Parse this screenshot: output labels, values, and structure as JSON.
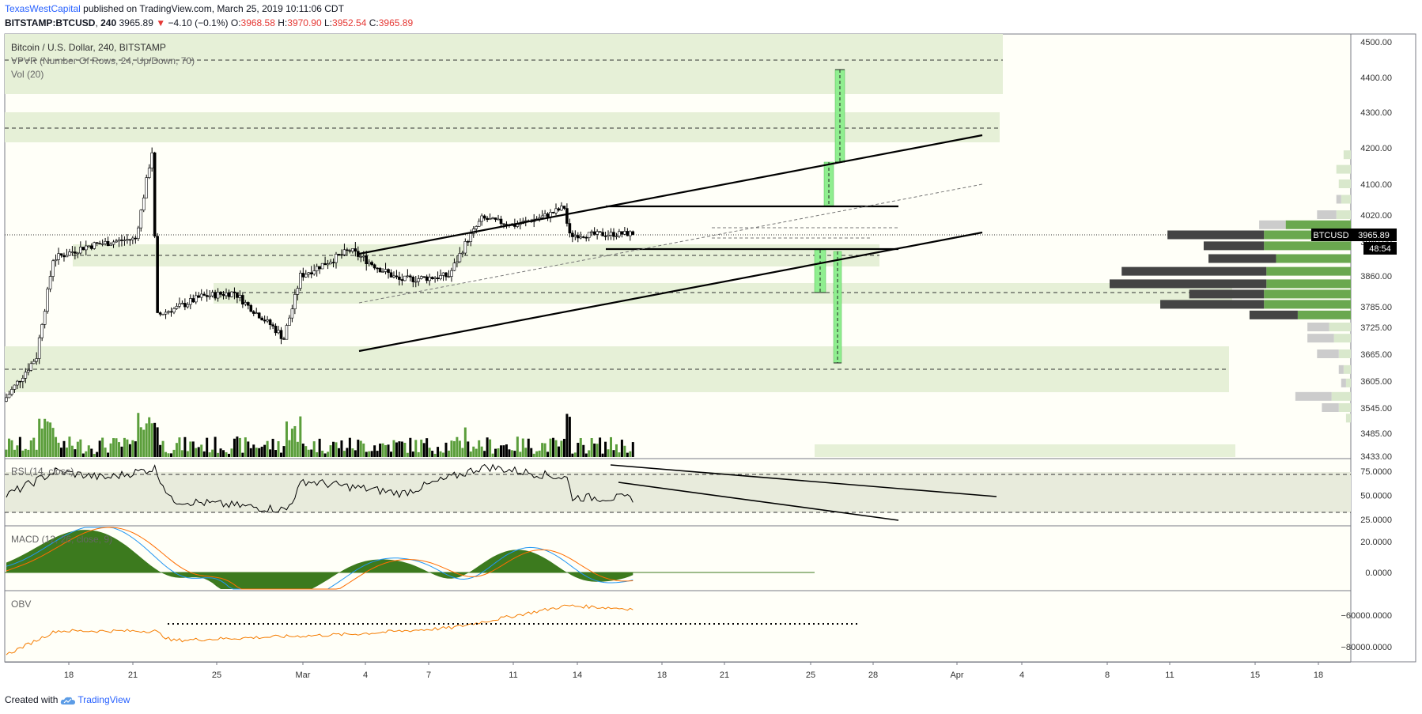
{
  "header": {
    "author": "TexasWestCapital",
    "published_text": "published on TradingView.com, March 25, 2019 10:11:06 CDT"
  },
  "ohlc": {
    "symbol": "BITSTAMP:BTCUSD",
    "interval": "240",
    "last": "3965.89",
    "change": "−4.10 (−0.1%)",
    "o_label": "O:",
    "o": "3968.58",
    "h_label": "H:",
    "h": "3970.90",
    "l_label": "L:",
    "l": "3952.54",
    "c_label": "C:",
    "c": "3965.89"
  },
  "legend": {
    "title": "Bitcoin / U.S. Dollar, 240, BITSTAMP",
    "vpvr": "VPVR (Number Of Rows, 24, Up/Down, 70)",
    "vol": "Vol (20)",
    "rsi": "RSI (14, close)",
    "macd": "MACD (12, 26, close, 9)",
    "obv": "OBV"
  },
  "price_tag": {
    "symbol": "BTCUSD",
    "value": "3965.89",
    "countdown": "48:54"
  },
  "footer": {
    "created_with": "Created with",
    "brand": "TradingView"
  },
  "colors": {
    "background": "#fffff8",
    "zone": "#e6f0d7",
    "up_candle": "#ffffff",
    "down_candle": "#000000",
    "volume_up": "#5b9e3b",
    "volume_down": "#000000",
    "target_box": "#90ee90",
    "macd_hist": "#3c7a1e",
    "macd_line": "#2196f3",
    "signal_line": "#ff6d00",
    "obv_line": "#f57c00",
    "rsi_line": "#000000"
  },
  "chart_data": [
    {
      "type": "candlestick",
      "title": "Bitcoin / U.S. Dollar, 240, BITSTAMP",
      "x_ticks": [
        "18",
        "21",
        "25",
        "Mar",
        "4",
        "7",
        "11",
        "14",
        "18",
        "21",
        "25",
        "28",
        "Apr",
        "4",
        "8",
        "11",
        "15",
        "18"
      ],
      "y_ticks": [
        3433,
        3485,
        3545,
        3605,
        3665,
        3725,
        3785,
        3860,
        3940,
        4020,
        4100,
        4200,
        4300,
        4400,
        4500
      ],
      "y_tick_labels": [
        "3433.00",
        "3485.00",
        "3545.00",
        "3605.00",
        "3665.00",
        "3725.00",
        "3785.00",
        "3860.00",
        "3940.00",
        "4020.00",
        "4100.00",
        "4200.00",
        "4300.00",
        "4400.00",
        "4500.00"
      ],
      "last_price": 3965.89,
      "key_points": [
        {
          "date": "Feb 15",
          "price": 3560
        },
        {
          "date": "Feb 17",
          "price": 3660
        },
        {
          "date": "Feb 18",
          "price": 3900
        },
        {
          "date": "Feb 20",
          "price": 3930
        },
        {
          "date": "Feb 23",
          "price": 3950
        },
        {
          "date": "Feb 24",
          "price": 4190
        },
        {
          "date": "Feb 24",
          "price": 3760
        },
        {
          "date": "Feb 27",
          "price": 3810
        },
        {
          "date": "Mar 1",
          "price": 3820
        },
        {
          "date": "Mar 4",
          "price": 3700
        },
        {
          "date": "Mar 5",
          "price": 3860
        },
        {
          "date": "Mar 8",
          "price": 3920
        },
        {
          "date": "Mar 11",
          "price": 3850
        },
        {
          "date": "Mar 14",
          "price": 3860
        },
        {
          "date": "Mar 16",
          "price": 4010
        },
        {
          "date": "Mar 18",
          "price": 3990
        },
        {
          "date": "Mar 20",
          "price": 4020
        },
        {
          "date": "Mar 21",
          "price": 4040
        },
        {
          "date": "Mar 21",
          "price": 3960
        },
        {
          "date": "Mar 25",
          "price": 3965
        }
      ],
      "volume_profile_rows": [
        {
          "price": 4180,
          "up": 0.03,
          "down": 0.0
        },
        {
          "price": 4140,
          "up": 0.06,
          "down": 0.0
        },
        {
          "price": 4100,
          "up": 0.05,
          "down": 0.0
        },
        {
          "price": 4060,
          "up": 0.04,
          "down": 0.02
        },
        {
          "price": 4020,
          "up": 0.06,
          "down": 0.08
        },
        {
          "price": 3990,
          "up": 0.27,
          "down": 0.11
        },
        {
          "price": 3960,
          "up": 0.36,
          "down": 0.4
        },
        {
          "price": 3930,
          "up": 0.36,
          "down": 0.25
        },
        {
          "price": 3900,
          "up": 0.31,
          "down": 0.28
        },
        {
          "price": 3870,
          "up": 0.35,
          "down": 0.6
        },
        {
          "price": 3840,
          "up": 0.35,
          "down": 0.65
        },
        {
          "price": 3815,
          "up": 0.36,
          "down": 0.31
        },
        {
          "price": 3790,
          "up": 0.36,
          "down": 0.43
        },
        {
          "price": 3760,
          "up": 0.22,
          "down": 0.2
        },
        {
          "price": 3725,
          "up": 0.09,
          "down": 0.09
        },
        {
          "price": 3700,
          "up": 0.07,
          "down": 0.11
        },
        {
          "price": 3665,
          "up": 0.05,
          "down": 0.09
        },
        {
          "price": 3630,
          "up": 0.03,
          "down": 0.02
        },
        {
          "price": 3600,
          "up": 0.02,
          "down": 0.02
        },
        {
          "price": 3570,
          "up": 0.08,
          "down": 0.15
        },
        {
          "price": 3545,
          "up": 0.05,
          "down": 0.07
        },
        {
          "price": 3520,
          "up": 0.02,
          "down": 0.0
        }
      ]
    },
    {
      "type": "line",
      "title": "RSI (14, close)",
      "y_ticks": [
        25,
        50,
        75
      ],
      "y_tick_labels": [
        "25.0000",
        "50.0000",
        "75.0000"
      ],
      "bands": [
        30,
        70
      ],
      "key_points": [
        {
          "date": "Feb 15",
          "value": 50
        },
        {
          "date": "Feb 18",
          "value": 75
        },
        {
          "date": "Feb 21",
          "value": 68
        },
        {
          "date": "Feb 24",
          "value": 78
        },
        {
          "date": "Feb 25",
          "value": 45
        },
        {
          "date": "Mar 4",
          "value": 35
        },
        {
          "date": "Mar 5",
          "value": 65
        },
        {
          "date": "Mar 11",
          "value": 52
        },
        {
          "date": "Mar 16",
          "value": 80
        },
        {
          "date": "Mar 21",
          "value": 68
        },
        {
          "date": "Mar 21",
          "value": 48
        },
        {
          "date": "Mar 25",
          "value": 47
        }
      ]
    },
    {
      "type": "line",
      "title": "MACD (12, 26, close, 9)",
      "y_ticks": [
        0,
        20
      ],
      "y_tick_labels": [
        "0.0000",
        "20.0000"
      ],
      "series_names": []
    },
    {
      "type": "line",
      "title": "OBV",
      "y_ticks": [
        -80000,
        -60000
      ],
      "y_tick_labels": [
        "−80000.0000",
        "−60000.0000"
      ],
      "key_points": [
        {
          "date": "Feb 15",
          "value": -85000
        },
        {
          "date": "Feb 18",
          "value": -70000
        },
        {
          "date": "Feb 24",
          "value": -70000
        },
        {
          "date": "Feb 25",
          "value": -76000
        },
        {
          "date": "Mar 8",
          "value": -72000
        },
        {
          "date": "Mar 14",
          "value": -68000
        },
        {
          "date": "Mar 16",
          "value": -64000
        },
        {
          "date": "Mar 21",
          "value": -54000
        },
        {
          "date": "Mar 25",
          "value": -56000
        }
      ]
    }
  ]
}
